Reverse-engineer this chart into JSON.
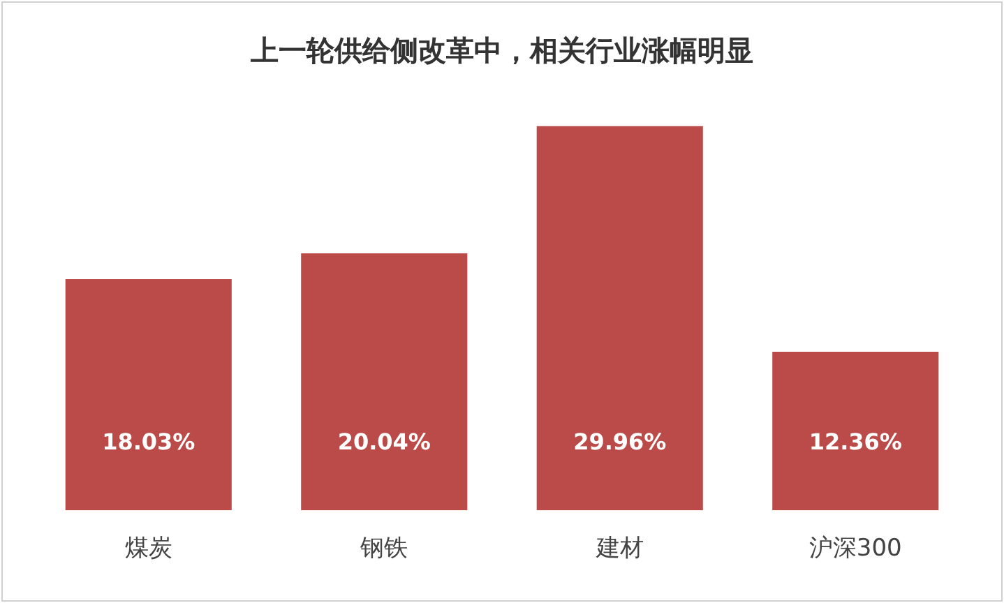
{
  "chart_data": {
    "type": "bar",
    "title": "上一轮供给侧改革中，相关行业涨幅明显",
    "categories": [
      "煤炭",
      "钢铁",
      "建材",
      "沪深300"
    ],
    "values": [
      18.03,
      20.04,
      29.96,
      12.36
    ],
    "value_labels": [
      "18.03%",
      "20.04%",
      "29.96%",
      "12.36%"
    ],
    "color": "#bb4b48",
    "grid": false,
    "legend": false,
    "tick_labels": "x"
  }
}
